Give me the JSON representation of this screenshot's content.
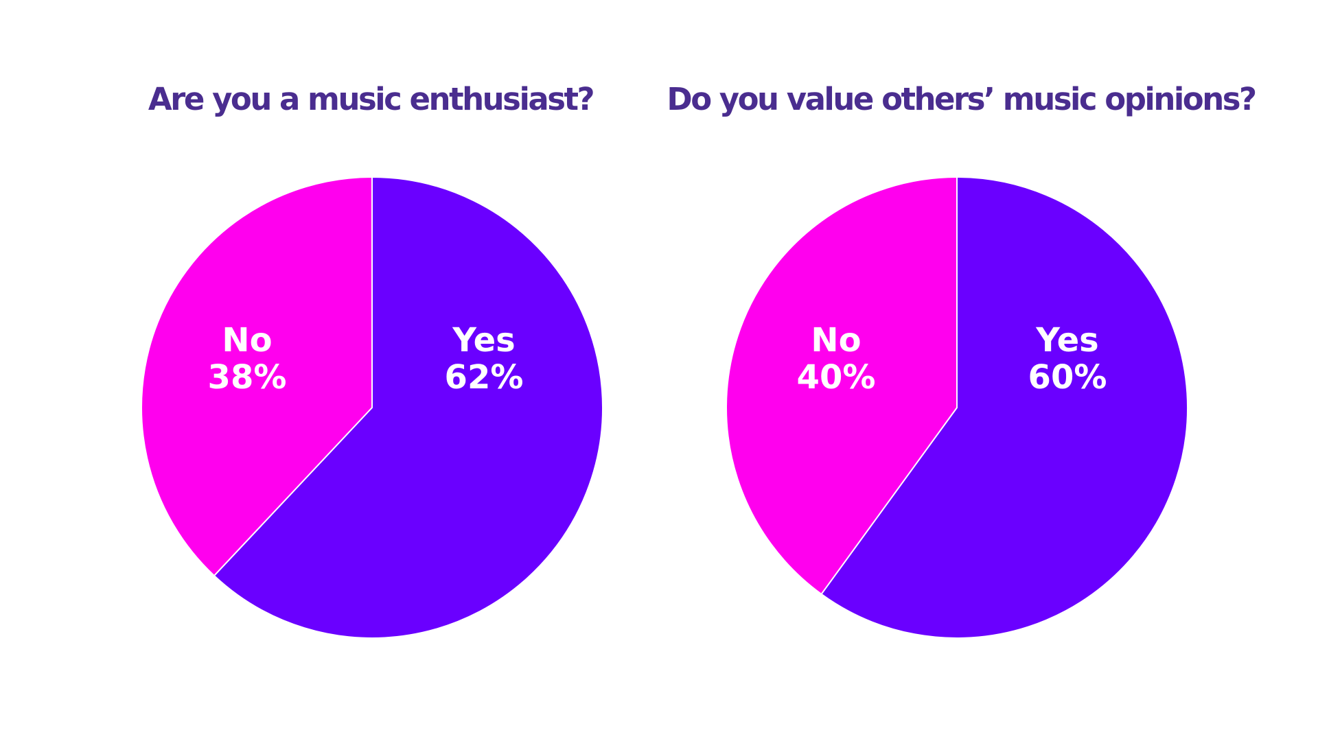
{
  "chart_data": [
    {
      "type": "pie",
      "title": "Are you a music enthusiast?",
      "slices": [
        {
          "label": "Yes",
          "value": 62,
          "value_label": "62%",
          "color": "#6a00ff"
        },
        {
          "label": "No",
          "value": 38,
          "value_label": "38%",
          "color": "#ff00ee"
        }
      ],
      "start_angle": "12 o'clock",
      "direction": "clockwise"
    },
    {
      "type": "pie",
      "title": "Do you value others’ music opinions?",
      "slices": [
        {
          "label": "Yes",
          "value": 60,
          "value_label": "60%",
          "color": "#6a00ff"
        },
        {
          "label": "No",
          "value": 40,
          "value_label": "40%",
          "color": "#ff00ee"
        }
      ],
      "start_angle": "12 o'clock",
      "direction": "clockwise"
    }
  ],
  "theme": {
    "title_color": "#4a2d8f",
    "label_color": "#ffffff",
    "background": "#ffffff"
  }
}
